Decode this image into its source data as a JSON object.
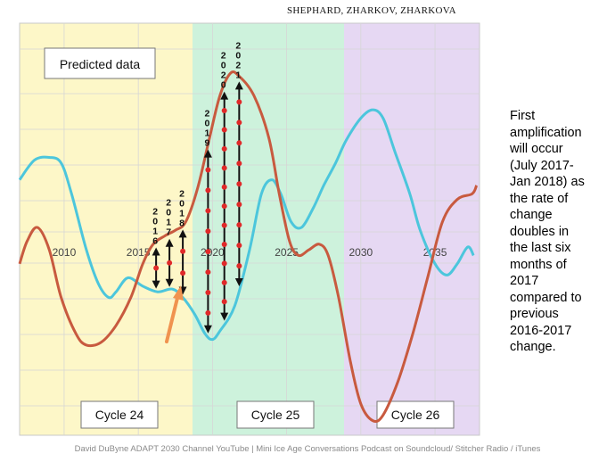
{
  "header": {
    "authors": "SHEPHARD,  ZHARKOV,  ZHARKOVA"
  },
  "predicted_box": {
    "label": "Predicted data"
  },
  "cycles": [
    {
      "label": "Cycle 24",
      "color": "#fdf7c8"
    },
    {
      "label": "Cycle 25",
      "color": "#cdf2dc"
    },
    {
      "label": "Cycle 26",
      "color": "#e6d8f3"
    }
  ],
  "chart_data": {
    "type": "line",
    "x_ticks": [
      "2010",
      "2015",
      "2020",
      "2025",
      "2030",
      "2035"
    ],
    "xlim": [
      2007,
      2038
    ],
    "series": [
      {
        "color": "#4cc6dc",
        "points": [
          [
            2007,
            0.6
          ],
          [
            2008,
            0.67
          ],
          [
            2009,
            0.68
          ],
          [
            2009.8,
            0.66
          ],
          [
            2010.5,
            0.55
          ],
          [
            2011.5,
            0.35
          ],
          [
            2012.3,
            0.23
          ],
          [
            2013.0,
            0.18
          ],
          [
            2013.5,
            0.2
          ],
          [
            2014.3,
            0.25
          ],
          [
            2015.3,
            0.22
          ],
          [
            2016.3,
            0.2
          ],
          [
            2017.3,
            0.21
          ],
          [
            2018.0,
            0.18
          ],
          [
            2018.8,
            0.12
          ],
          [
            2019.5,
            0.05
          ],
          [
            2020.0,
            0.03
          ],
          [
            2020.5,
            0.06
          ],
          [
            2021.5,
            0.15
          ],
          [
            2022.5,
            0.35
          ],
          [
            2023.3,
            0.55
          ],
          [
            2024.0,
            0.6
          ],
          [
            2024.6,
            0.55
          ],
          [
            2025.3,
            0.45
          ],
          [
            2026.0,
            0.43
          ],
          [
            2026.8,
            0.5
          ],
          [
            2027.5,
            0.58
          ],
          [
            2028.3,
            0.66
          ],
          [
            2029.0,
            0.74
          ],
          [
            2030.0,
            0.82
          ],
          [
            2030.8,
            0.85
          ],
          [
            2031.5,
            0.82
          ],
          [
            2032.3,
            0.7
          ],
          [
            2033.3,
            0.55
          ],
          [
            2034.0,
            0.42
          ],
          [
            2035.0,
            0.3
          ],
          [
            2035.8,
            0.26
          ],
          [
            2036.5,
            0.3
          ],
          [
            2037.2,
            0.36
          ],
          [
            2037.6,
            0.33
          ]
        ]
      },
      {
        "color": "#c85a3f",
        "points": [
          [
            2007,
            0.3
          ],
          [
            2007.5,
            0.38
          ],
          [
            2008.2,
            0.43
          ],
          [
            2009.0,
            0.35
          ],
          [
            2009.8,
            0.18
          ],
          [
            2010.8,
            0.05
          ],
          [
            2011.5,
            0.01
          ],
          [
            2012.5,
            0.02
          ],
          [
            2013.5,
            0.08
          ],
          [
            2014.5,
            0.18
          ],
          [
            2015.3,
            0.3
          ],
          [
            2016.0,
            0.37
          ],
          [
            2016.8,
            0.4
          ],
          [
            2017.5,
            0.42
          ],
          [
            2018.2,
            0.45
          ],
          [
            2019.0,
            0.57
          ],
          [
            2019.8,
            0.75
          ],
          [
            2020.5,
            0.9
          ],
          [
            2021.2,
            0.98
          ],
          [
            2021.8,
            0.97
          ],
          [
            2022.8,
            0.9
          ],
          [
            2023.8,
            0.75
          ],
          [
            2024.5,
            0.55
          ],
          [
            2025.2,
            0.38
          ],
          [
            2025.8,
            0.33
          ],
          [
            2026.5,
            0.35
          ],
          [
            2027.2,
            0.37
          ],
          [
            2027.8,
            0.33
          ],
          [
            2028.5,
            0.18
          ],
          [
            2029.3,
            -0.05
          ],
          [
            2030.0,
            -0.2
          ],
          [
            2030.8,
            -0.26
          ],
          [
            2031.5,
            -0.24
          ],
          [
            2032.5,
            -0.12
          ],
          [
            2033.5,
            0.05
          ],
          [
            2034.5,
            0.25
          ],
          [
            2035.5,
            0.45
          ],
          [
            2036.5,
            0.53
          ],
          [
            2037.5,
            0.55
          ],
          [
            2037.8,
            0.58
          ]
        ]
      }
    ]
  },
  "markers": [
    {
      "label": "2016",
      "year": 2016.2
    },
    {
      "label": "2017",
      "year": 2017.1
    },
    {
      "label": "2018",
      "year": 2018.0
    },
    {
      "label": "2019",
      "year": 2019.7
    },
    {
      "label": "2020",
      "year": 2020.8
    },
    {
      "label": "2021",
      "year": 2021.8
    }
  ],
  "side_note": [
    "First",
    "amplification",
    "will occur",
    "(July 2017-",
    "Jan 2018)  as",
    "the rate of",
    "change",
    "doubles in",
    "the last six",
    "months of",
    "2017",
    "compared to",
    "previous",
    "2016-2017",
    "change."
  ],
  "footer": {
    "text": "David DuByne ADAPT 2030 Channel YouTube | Mini Ice Age Conversations Podcast on Soundcloud/ Stitcher Radio / iTunes"
  }
}
